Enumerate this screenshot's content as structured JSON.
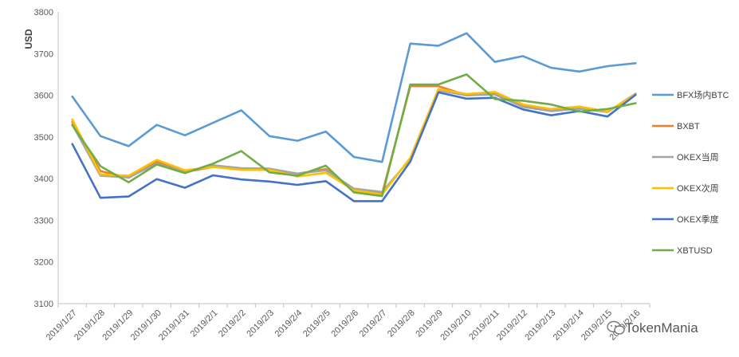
{
  "chart_data": {
    "type": "line",
    "title": "",
    "xlabel": "",
    "ylabel": "USD",
    "ylim": [
      3100,
      3800
    ],
    "yticks": [
      3100,
      3200,
      3300,
      3400,
      3500,
      3600,
      3700,
      3800
    ],
    "grid": false,
    "legend_position": "right",
    "categories": [
      "2019/1/27",
      "2019/1/28",
      "2019/1/29",
      "2019/1/30",
      "2019/1/31",
      "2019/2/1",
      "2019/2/2",
      "2019/2/3",
      "2019/2/4",
      "2019/2/5",
      "2019/2/6",
      "2019/2/7",
      "2019/2/8",
      "2019/2/9",
      "2019/2/10",
      "2019/2/11",
      "2019/2/12",
      "2019/2/13",
      "2019/2/14",
      "2019/2/15",
      "2019/2/16"
    ],
    "series": [
      {
        "name": "BFX场内BTC",
        "color": "#5B9BD5",
        "values": [
          3597,
          3502,
          3478,
          3529,
          3504,
          3534,
          3564,
          3502,
          3491,
          3513,
          3452,
          3440,
          3724,
          3719,
          3749,
          3680,
          3694,
          3666,
          3657,
          3670,
          3677
        ]
      },
      {
        "name": "BXBT",
        "color": "#ED7D31",
        "values": [
          3536,
          3418,
          3402,
          3441,
          3416,
          3428,
          3424,
          3422,
          3412,
          3423,
          3373,
          3364,
          3622,
          3622,
          3600,
          3604,
          3576,
          3566,
          3568,
          3560,
          3602
        ]
      },
      {
        "name": "OKEX当周",
        "color": "#A5A5A5",
        "values": [
          3530,
          3407,
          3403,
          3436,
          3416,
          3432,
          3425,
          3424,
          3412,
          3420,
          3376,
          3368,
          3447,
          3612,
          3600,
          3602,
          3572,
          3562,
          3568,
          3560,
          3604
        ]
      },
      {
        "name": "OKEX次周",
        "color": "#FFC000",
        "values": [
          3542,
          3410,
          3407,
          3445,
          3420,
          3428,
          3421,
          3421,
          3405,
          3414,
          3372,
          3362,
          3450,
          3615,
          3603,
          3608,
          3578,
          3567,
          3573,
          3561,
          3602
        ]
      },
      {
        "name": "OKEX季度",
        "color": "#4472C4",
        "values": [
          3483,
          3354,
          3357,
          3399,
          3378,
          3408,
          3398,
          3393,
          3385,
          3394,
          3346,
          3346,
          3441,
          3607,
          3592,
          3594,
          3566,
          3552,
          3562,
          3549,
          3601
        ]
      },
      {
        "name": "XBTUSD",
        "color": "#70AD47",
        "values": [
          3528,
          3430,
          3391,
          3434,
          3413,
          3436,
          3466,
          3415,
          3407,
          3431,
          3367,
          3358,
          3626,
          3626,
          3650,
          3591,
          3587,
          3578,
          3561,
          3567,
          3581
        ]
      }
    ]
  },
  "watermark": {
    "text": "TokenMania",
    "icon": "wechat-icon"
  }
}
